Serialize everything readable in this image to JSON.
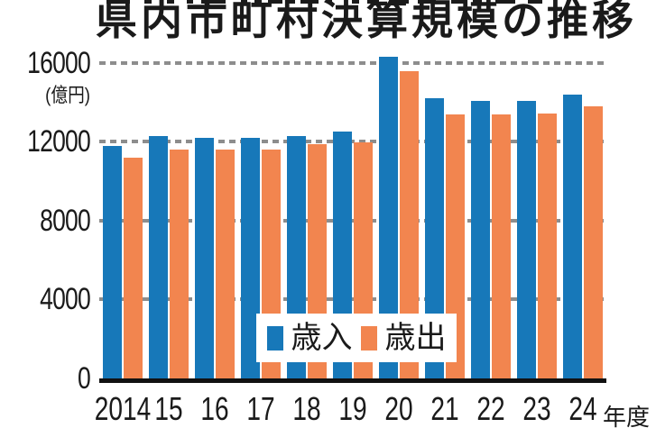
{
  "title": "県内市町村決算規模の推移",
  "y_axis": {
    "unit": "(億円)",
    "ticks": [
      16000,
      12000,
      8000,
      4000,
      0
    ]
  },
  "x_axis": {
    "labels": [
      "2014",
      "15",
      "16",
      "17",
      "18",
      "19",
      "20",
      "21",
      "22",
      "23",
      "24"
    ],
    "suffix": "年度"
  },
  "legend": {
    "items": [
      {
        "label": "歳入",
        "color": "#1778b9"
      },
      {
        "label": "歳出",
        "color": "#f2854f"
      }
    ]
  },
  "colors": {
    "revenue_blue": "#1778b9",
    "expenditure_orange": "#f2854f",
    "gridline_gray": "#8d8d8d",
    "axis_black": "#111111",
    "text_black": "#1a1a1a",
    "background": "#ffffff"
  },
  "chart_data": {
    "type": "bar",
    "title": "県内市町村決算規模の推移",
    "ylabel": "(億円)",
    "xlabel": "年度",
    "ylim": [
      0,
      16500
    ],
    "gridlines": [
      4000,
      8000,
      12000,
      16000
    ],
    "grid_style": "dashed-gray",
    "legend_position": "inside-bottom-center",
    "categories": [
      "2014",
      "2015",
      "2016",
      "2017",
      "2018",
      "2019",
      "2020",
      "2021",
      "2022",
      "2023",
      "2024"
    ],
    "series": [
      {
        "name": "歳入",
        "color": "#1778b9",
        "values": [
          11800,
          12300,
          12200,
          12200,
          12300,
          12500,
          16300,
          14200,
          14100,
          14100,
          14400
        ]
      },
      {
        "name": "歳出",
        "color": "#f2854f",
        "values": [
          11200,
          11600,
          11600,
          11600,
          11900,
          11950,
          15600,
          13400,
          13400,
          13450,
          13800
        ]
      }
    ]
  },
  "artifacts": [
    [
      118,
      26
    ],
    [
      160,
      8
    ],
    [
      185,
      8
    ],
    [
      207,
      7
    ],
    [
      223,
      27
    ],
    [
      267,
      7
    ],
    [
      282,
      8
    ],
    [
      297,
      16
    ],
    [
      318,
      9
    ],
    [
      333,
      20
    ],
    [
      363,
      5
    ],
    [
      390,
      8
    ],
    [
      407,
      13
    ],
    [
      433,
      20
    ],
    [
      463,
      20
    ],
    [
      500,
      14
    ],
    [
      524,
      10
    ],
    [
      549,
      22
    ],
    [
      585,
      16
    ]
  ]
}
